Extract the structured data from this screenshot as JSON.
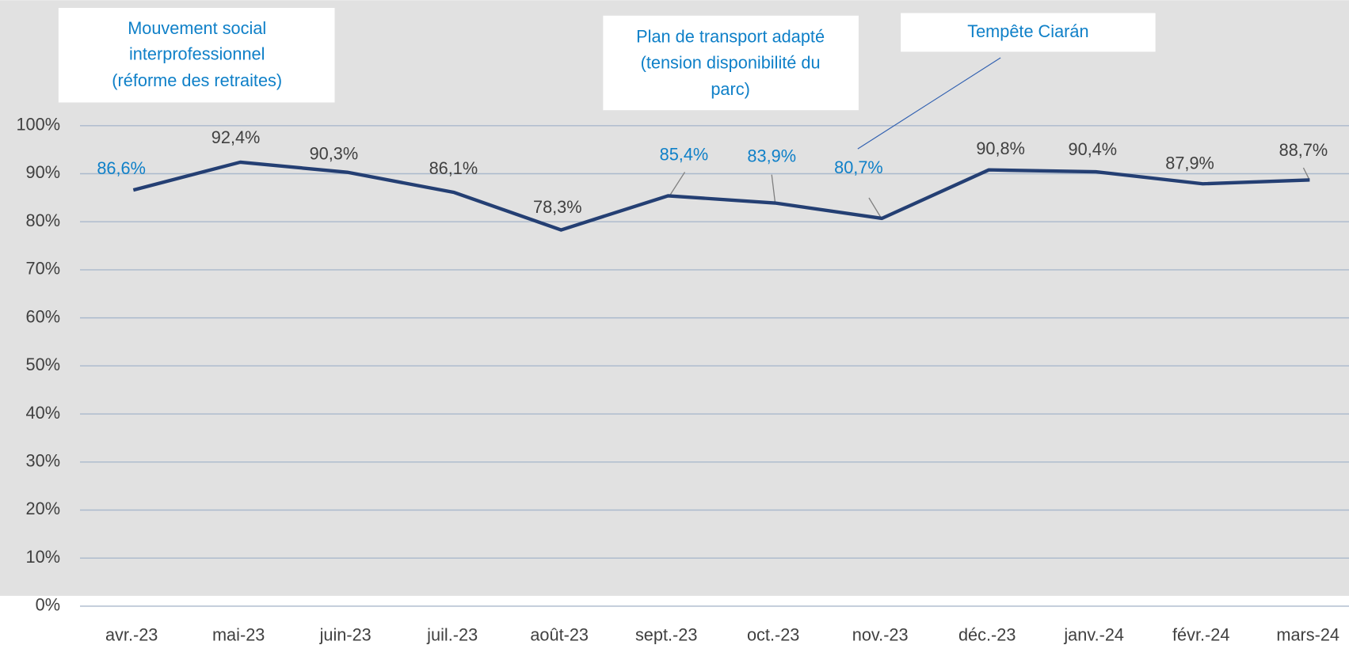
{
  "chart_data": {
    "type": "line",
    "categories": [
      "avr.-23",
      "mai-23",
      "juin-23",
      "juil.-23",
      "août-23",
      "sept.-23",
      "oct.-23",
      "nov.-23",
      "déc.-23",
      "janv.-24",
      "févr.-24",
      "mars-24"
    ],
    "series": [
      {
        "color": "#243f73",
        "values": [
          86.6,
          92.4,
          90.3,
          86.1,
          78.3,
          85.4,
          83.9,
          80.7,
          90.8,
          90.4,
          87.9,
          88.7
        ],
        "value_labels": [
          "86,6%",
          "92,4%",
          "90,3%",
          "86,1%",
          "78,3%",
          "85,4%",
          "83,9%",
          "80,7%",
          "90,8%",
          "90,4%",
          "87,9%",
          "88,7%"
        ],
        "value_label_colors": [
          "#0f80c8",
          "#404040",
          "#404040",
          "#404040",
          "#404040",
          "#0f80c8",
          "#0f80c8",
          "#0f80c8",
          "#404040",
          "#404040",
          "#404040",
          "#404040"
        ]
      }
    ],
    "ylim": [
      0,
      100
    ],
    "yticks": [
      {
        "value": 0,
        "label": "0%"
      },
      {
        "value": 10,
        "label": "10%"
      },
      {
        "value": 20,
        "label": "20%"
      },
      {
        "value": 30,
        "label": "30%"
      },
      {
        "value": 40,
        "label": "40%"
      },
      {
        "value": 50,
        "label": "50%"
      },
      {
        "value": 60,
        "label": "60%"
      },
      {
        "value": 70,
        "label": "70%"
      },
      {
        "value": 80,
        "label": "80%"
      },
      {
        "value": 90,
        "label": "90%"
      },
      {
        "value": 100,
        "label": "100%"
      }
    ],
    "grid": true,
    "annotations": [
      {
        "lines": [
          "Mouvement social",
          "interprofessionnel",
          "(réforme des retraites)"
        ]
      },
      {
        "lines": [
          "Plan de transport adapté",
          "(tension disponibilité du",
          "parc)"
        ]
      },
      {
        "lines": [
          "Tempête Ciarán"
        ]
      }
    ]
  }
}
